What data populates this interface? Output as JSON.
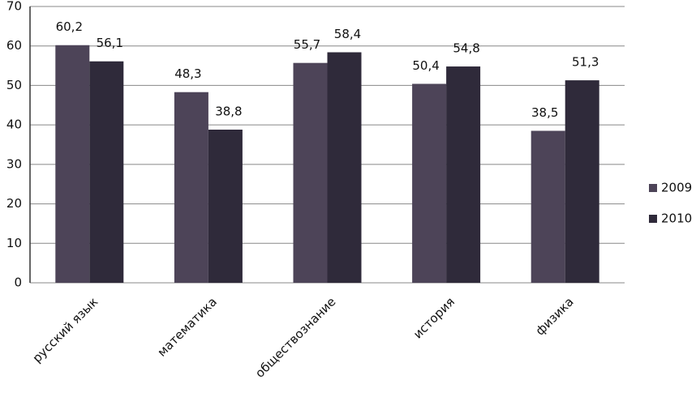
{
  "chart_data": {
    "type": "bar",
    "categories": [
      "русский язык",
      "математика",
      "обществознание",
      "история",
      "физика"
    ],
    "series": [
      {
        "name": "2009",
        "color": "#4d4458",
        "values": [
          60.2,
          48.3,
          55.7,
          50.4,
          38.5
        ],
        "value_labels": [
          "60,2",
          "48,3",
          "55,7",
          "50,4",
          "38,5"
        ]
      },
      {
        "name": "2010",
        "color": "#2f2a3a",
        "values": [
          56.1,
          38.8,
          58.4,
          54.8,
          51.3
        ],
        "value_labels": [
          "56,1",
          "38,8",
          "58,4",
          "54,8",
          "51,3"
        ]
      }
    ],
    "ylim": [
      0,
      70
    ],
    "yticks": [
      0,
      10,
      20,
      30,
      40,
      50,
      60,
      70
    ],
    "grid": true,
    "legend": "right"
  }
}
